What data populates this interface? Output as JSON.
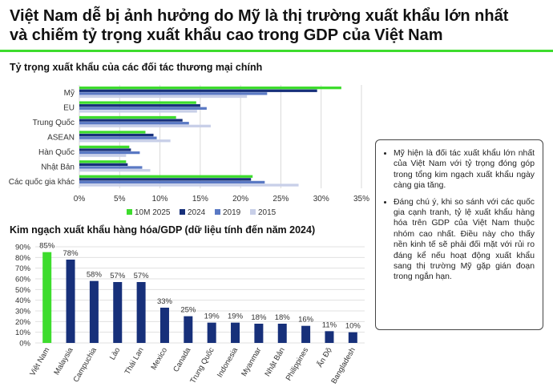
{
  "page": {
    "title_line1": "Việt Nam dễ bị ảnh hưởng do Mỹ là thị trường xuất khẩu lớn nhất",
    "title_line2": "và chiếm tỷ trọng xuất khẩu cao trong GDP của Việt Nam",
    "accent_color": "#3ddc2d"
  },
  "notes": [
    "Mỹ hiện là đối tác xuất khẩu lớn nhất của Việt Nam với tỷ trọng đóng góp trong tổng kim ngạch xuất khẩu ngày càng gia tăng.",
    "Đáng chú ý, khi so sánh với các quốc gia cạnh tranh, tỷ lệ xuất khẩu hàng hóa trên GDP của Việt Nam thuộc nhóm cao nhất. Điều này cho thấy nền kinh tế sẽ phải đối mặt với rủi ro đáng kể nếu hoạt động xuất khẩu sang thị trường Mỹ gặp gián đoạn trong ngắn hạn."
  ],
  "chart_data": [
    {
      "type": "bar",
      "orientation": "horizontal",
      "title": "Tỷ trọng xuất khẩu của các đối tác thương mại chính",
      "categories": [
        "Mỹ",
        "EU",
        "Trung Quốc",
        "ASEAN",
        "Hàn Quốc",
        "Nhật Bản",
        "Các quốc gia khác"
      ],
      "series": [
        {
          "name": "10M 2025",
          "color": "#3ddc2d",
          "values": [
            32.5,
            14.5,
            12.0,
            8.2,
            6.2,
            5.8,
            21.5
          ]
        },
        {
          "name": "2024",
          "color": "#17307a",
          "values": [
            29.5,
            15.0,
            12.8,
            9.2,
            6.4,
            6.0,
            21.3
          ]
        },
        {
          "name": "2019",
          "color": "#5a79c4",
          "values": [
            23.3,
            15.8,
            13.6,
            9.6,
            7.5,
            7.8,
            23.0
          ]
        },
        {
          "name": "2015",
          "color": "#c8cfe8",
          "values": [
            20.8,
            14.6,
            16.3,
            11.3,
            5.8,
            8.8,
            27.2
          ]
        }
      ],
      "xlim": [
        0,
        35
      ],
      "xticks": [
        "0%",
        "5%",
        "10%",
        "15%",
        "20%",
        "25%",
        "30%",
        "35%"
      ],
      "grid": true,
      "legend_position": "bottom"
    },
    {
      "type": "bar",
      "orientation": "vertical",
      "title": "Kim ngạch xuất khẩu hàng hóa/GDP (dữ liệu tính đến năm 2024)",
      "categories": [
        "Việt Nam",
        "Malaysia",
        "Campuchia",
        "Lào",
        "Thái Lan",
        "Mexico",
        "Canada",
        "Trung Quốc",
        "Indonesia",
        "Myanmar",
        "Nhật Bản",
        "Philippines",
        "Ấn Độ",
        "Bangladesh"
      ],
      "values": [
        85,
        78,
        58,
        57,
        57,
        33,
        25,
        19,
        19,
        18,
        18,
        16,
        11,
        10
      ],
      "value_labels": [
        "85%",
        "78%",
        "58%",
        "57%",
        "57%",
        "33%",
        "25%",
        "19%",
        "19%",
        "18%",
        "18%",
        "16%",
        "11%",
        "10%"
      ],
      "highlight_color": "#3ddc2d",
      "bar_color": "#17307a",
      "ylim": [
        0,
        90
      ],
      "yticks": [
        "0%",
        "10%",
        "20%",
        "30%",
        "40%",
        "50%",
        "60%",
        "70%",
        "80%",
        "90%"
      ],
      "grid": true
    }
  ]
}
